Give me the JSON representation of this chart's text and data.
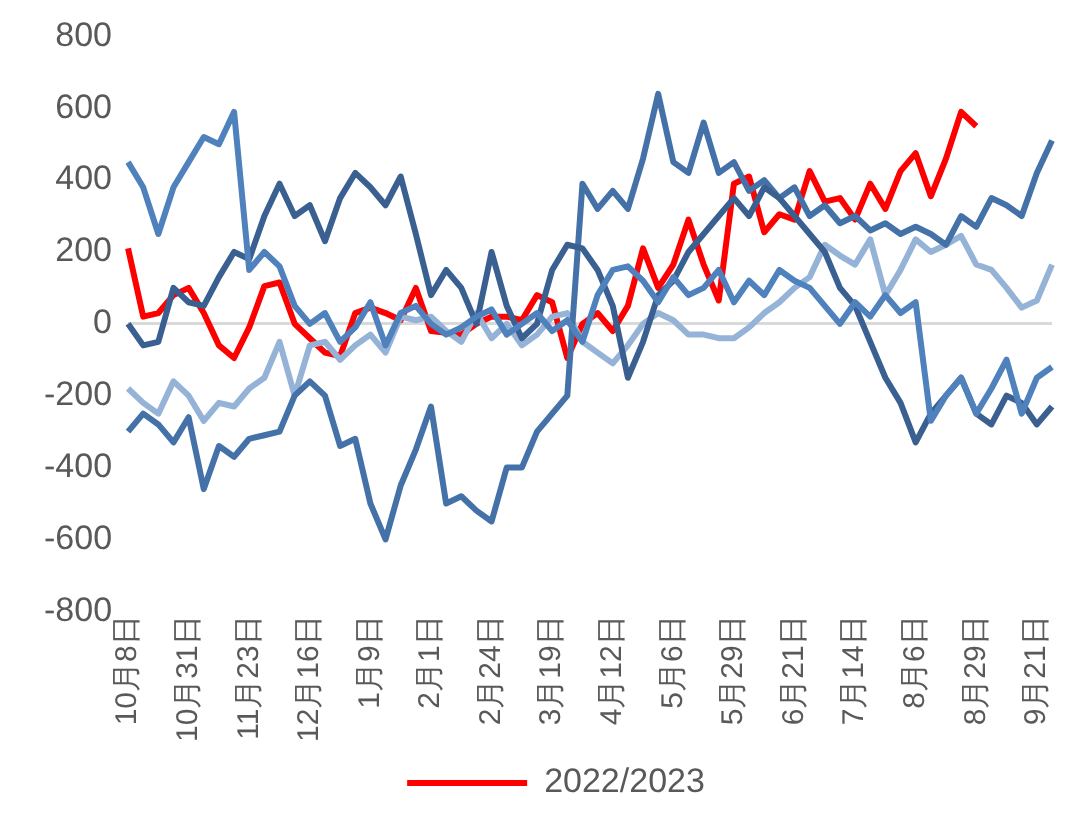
{
  "chart_data": {
    "type": "line",
    "categories": [
      "10月8日",
      null,
      null,
      null,
      "10月31日",
      null,
      null,
      null,
      "11月23日",
      null,
      null,
      null,
      "12月16日",
      null,
      null,
      null,
      "1月9日",
      null,
      null,
      null,
      "2月1日",
      null,
      null,
      null,
      "2月24日",
      null,
      null,
      null,
      "3月19日",
      null,
      null,
      null,
      "4月12日",
      null,
      null,
      null,
      "5月6日",
      null,
      null,
      null,
      "5月29日",
      null,
      null,
      null,
      "6月21日",
      null,
      null,
      null,
      "7月14日",
      null,
      null,
      null,
      "8月6日",
      null,
      null,
      null,
      "8月29日",
      null,
      null,
      null,
      "9月21日",
      null
    ],
    "series": [
      {
        "color": "#4f81bd",
        "values": [
          450,
          380,
          250,
          380,
          450,
          520,
          500,
          590,
          150,
          200,
          160,
          50,
          0,
          30,
          -50,
          -10,
          60,
          -60,
          30,
          50,
          0,
          -30,
          -10,
          20,
          40,
          -30,
          0,
          30,
          -20,
          10,
          -50,
          80,
          150,
          160,
          120,
          60,
          130,
          80,
          100,
          150,
          60,
          120,
          80,
          150,
          120,
          100,
          50,
          0,
          60,
          20,
          80,
          30,
          60,
          -270,
          -200,
          -150,
          -250,
          -180,
          -100,
          -250,
          -150,
          -120
        ]
      },
      {
        "color": "#3a6091",
        "values": [
          0,
          -60,
          -50,
          100,
          60,
          50,
          130,
          200,
          180,
          300,
          390,
          300,
          330,
          230,
          350,
          420,
          380,
          330,
          410,
          250,
          80,
          150,
          100,
          0,
          200,
          50,
          -40,
          0,
          150,
          220,
          210,
          150,
          50,
          -150,
          -50,
          80,
          120,
          200,
          250,
          300,
          350,
          300,
          380,
          350,
          300,
          250,
          200,
          100,
          50,
          -50,
          -150,
          -220,
          -330,
          -250,
          -200,
          -150,
          -250,
          -280,
          -200,
          -220,
          -280,
          -230
        ]
      },
      {
        "color": "#4472a8",
        "values": [
          -300,
          -250,
          -280,
          -330,
          -260,
          -460,
          -340,
          -370,
          -320,
          -310,
          -300,
          -200,
          -160,
          -200,
          -340,
          -320,
          -500,
          -600,
          -450,
          -350,
          -230,
          -500,
          -480,
          -520,
          -550,
          -400,
          -400,
          -300,
          -250,
          -200,
          390,
          320,
          370,
          320,
          460,
          640,
          450,
          420,
          560,
          420,
          450,
          370,
          400,
          350,
          380,
          300,
          330,
          280,
          300,
          260,
          280,
          250,
          270,
          250,
          220,
          300,
          270,
          350,
          330,
          300,
          420,
          510
        ]
      },
      {
        "color": "#95b3d7",
        "values": [
          -180,
          -220,
          -250,
          -160,
          -200,
          -270,
          -220,
          -230,
          -180,
          -150,
          -50,
          -200,
          -60,
          -50,
          -100,
          -60,
          -30,
          -80,
          20,
          10,
          20,
          -20,
          -50,
          30,
          -40,
          0,
          -60,
          -30,
          20,
          30,
          -50,
          -80,
          -110,
          -60,
          0,
          30,
          10,
          -30,
          -30,
          -40,
          -40,
          -10,
          30,
          60,
          100,
          130,
          220,
          190,
          165,
          235,
          80,
          150,
          235,
          200,
          220,
          245,
          165,
          150,
          100,
          45,
          65,
          165
        ]
      },
      {
        "name": "2022/2023",
        "color": "#ff0000",
        "values": [
          210,
          20,
          30,
          80,
          100,
          30,
          -60,
          -95,
          -10,
          105,
          115,
          0,
          -40,
          -80,
          -90,
          30,
          45,
          30,
          10,
          100,
          -20,
          -25,
          -30,
          0,
          20,
          20,
          10,
          80,
          60,
          -95,
          0,
          30,
          -20,
          50,
          210,
          100,
          165,
          290,
          165,
          65,
          390,
          410,
          255,
          305,
          290,
          425,
          340,
          350,
          290,
          390,
          320,
          425,
          475,
          355,
          460,
          590,
          550,
          null,
          null,
          null,
          null,
          null
        ]
      }
    ],
    "ylim": [
      -800,
      800
    ],
    "yticks": [
      -800,
      -600,
      -400,
      -200,
      0,
      200,
      400,
      600,
      800
    ],
    "legend": "bottom",
    "marker": "none"
  }
}
